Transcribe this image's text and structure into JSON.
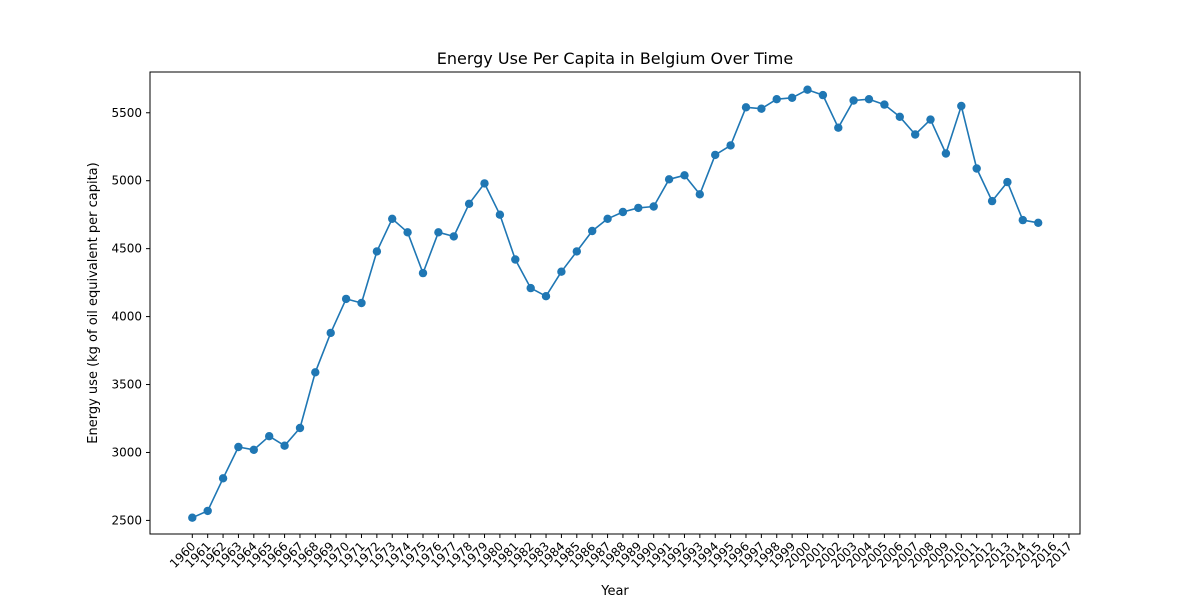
{
  "chart_data": {
    "type": "line",
    "title": "Energy Use Per Capita in Belgium Over Time",
    "xlabel": "Year",
    "ylabel": "Energy use (kg of oil equivalent per capita)",
    "categories": [
      "1960",
      "1961",
      "1962",
      "1963",
      "1964",
      "1965",
      "1966",
      "1967",
      "1968",
      "1969",
      "1970",
      "1971",
      "1972",
      "1973",
      "1974",
      "1975",
      "1976",
      "1977",
      "1978",
      "1979",
      "1980",
      "1981",
      "1982",
      "1983",
      "1984",
      "1985",
      "1986",
      "1987",
      "1988",
      "1989",
      "1990",
      "1991",
      "1992",
      "1993",
      "1994",
      "1995",
      "1996",
      "1997",
      "1998",
      "1999",
      "2000",
      "2001",
      "2002",
      "2003",
      "2004",
      "2005",
      "2006",
      "2007",
      "2008",
      "2009",
      "2010",
      "2011",
      "2012",
      "2013",
      "2014",
      "2015",
      "2016",
      "2017"
    ],
    "values": [
      2520,
      2570,
      2810,
      3040,
      3020,
      3120,
      3050,
      3180,
      3590,
      3880,
      4130,
      4100,
      4480,
      4720,
      4620,
      4320,
      4620,
      4590,
      4830,
      4980,
      4750,
      4420,
      4210,
      4150,
      4330,
      4480,
      4630,
      4720,
      4770,
      4800,
      4810,
      5010,
      5040,
      4900,
      5190,
      5260,
      5540,
      5530,
      5600,
      5610,
      5670,
      5630,
      5390,
      5590,
      5600,
      5560,
      5470,
      5340,
      5450,
      5200,
      5550,
      5090,
      4850,
      4990,
      4710,
      4690,
      null,
      null
    ],
    "ylim": [
      2400,
      5800
    ],
    "yticks": [
      2500,
      3000,
      3500,
      4000,
      4500,
      5000,
      5500
    ],
    "grid": false,
    "line_color": "#1f77b4",
    "marker": "circle"
  }
}
